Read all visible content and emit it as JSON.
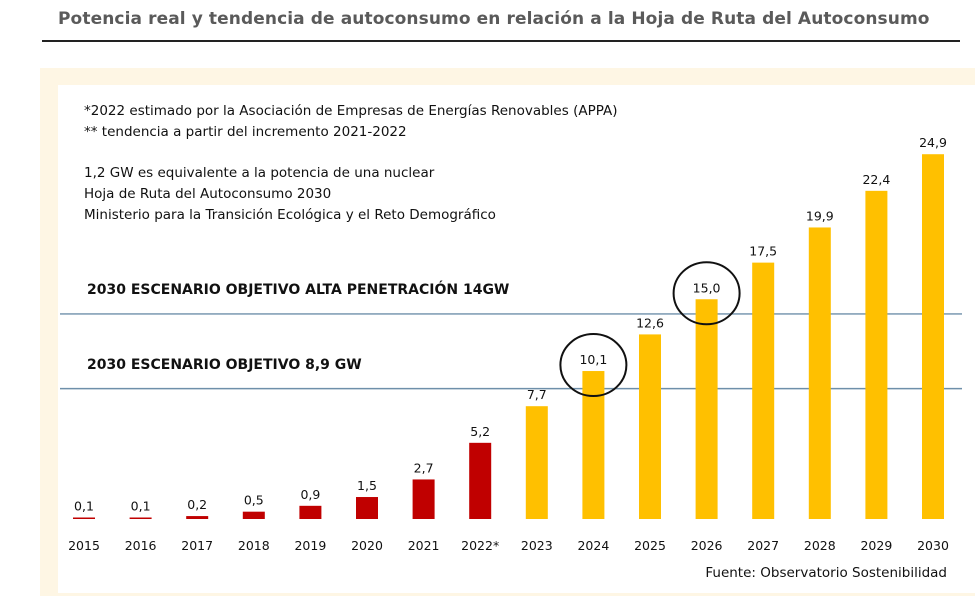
{
  "title": "Potencia real y tendencia de autoconsumo en relación a la Hoja de Ruta del Autoconsumo",
  "notes": [
    "*2022 estimado por la Asociación de Empresas de Energías Renovables (APPA)",
    "** tendencia a partir del incremento 2021-2022",
    "1,2 GW es equivalente a la potencia de una nuclear",
    "Hoja de Ruta del Autoconsumo 2030",
    "Ministerio para la Transición Ecológica y el Reto Demográfico"
  ],
  "source": "Fuente: Observatorio Sostenibilidad",
  "colors": {
    "actual": "#c00000",
    "trend": "#ffc000",
    "target_line": "#6e8faa",
    "circle": "#111111"
  },
  "chart_data": {
    "type": "bar",
    "categories": [
      "2015",
      "2016",
      "2017",
      "2018",
      "2019",
      "2020",
      "2021",
      "2022*",
      "2023",
      "2024",
      "2025",
      "2026",
      "2027",
      "2028",
      "2029",
      "2030"
    ],
    "values": [
      0.1,
      0.1,
      0.2,
      0.5,
      0.9,
      1.5,
      2.7,
      5.2,
      7.7,
      10.1,
      12.6,
      15.0,
      17.5,
      19.9,
      22.4,
      24.9
    ],
    "value_labels": [
      "0,1",
      "0,1",
      "0,2",
      "0,5",
      "0,9",
      "1,5",
      "2,7",
      "5,2",
      "7,7",
      "10,1",
      "12,6",
      "15,0",
      "17,5",
      "19,9",
      "22,4",
      "24,9"
    ],
    "series_colors": [
      "actual",
      "actual",
      "actual",
      "actual",
      "actual",
      "actual",
      "actual",
      "actual",
      "trend",
      "trend",
      "trend",
      "trend",
      "trend",
      "trend",
      "trend",
      "trend"
    ],
    "reference_lines": [
      {
        "label": "2030 ESCENARIO OBJETIVO ALTA PENETRACIÓN 14GW",
        "value": 14
      },
      {
        "label": "2030 ESCENARIO OBJETIVO 8,9 GW",
        "value": 8.9
      }
    ],
    "highlighted": [
      "2024",
      "2026"
    ],
    "ylim": [
      0,
      25
    ],
    "grid": false,
    "xlabel": "",
    "ylabel": ""
  }
}
